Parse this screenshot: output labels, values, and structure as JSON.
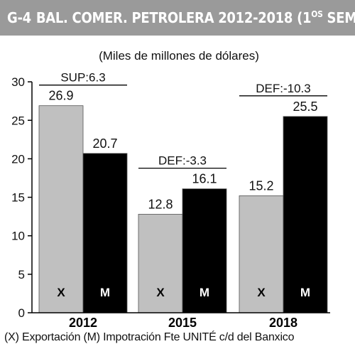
{
  "header": {
    "code": "G-4",
    "title": "BAL. COMER. PETROLERA 2012-2018 (1",
    "sup": "OS",
    "suffix": " SEM.)"
  },
  "footnote": "(X) Exportación (M) Impotración Fte UNITÉ c/d del Banxico",
  "chart_data": {
    "type": "bar",
    "subtitle": "(Miles de millones de dólares)",
    "categories": [
      "2012",
      "2015",
      "2018"
    ],
    "series": [
      {
        "name": "X",
        "values": [
          26.9,
          12.8,
          15.2
        ],
        "color": "#c0c0c0"
      },
      {
        "name": "M",
        "values": [
          20.7,
          16.1,
          25.5
        ],
        "color": "#000000"
      }
    ],
    "bar_labels": [
      "X",
      "M"
    ],
    "annotations": [
      "SUP:6.3",
      "DEF:-3.3",
      "DEF:-10.3"
    ],
    "ylim": [
      0,
      30
    ],
    "yticks": [
      0,
      5,
      10,
      15,
      20,
      25,
      30
    ],
    "grid": false,
    "legend": "none"
  }
}
